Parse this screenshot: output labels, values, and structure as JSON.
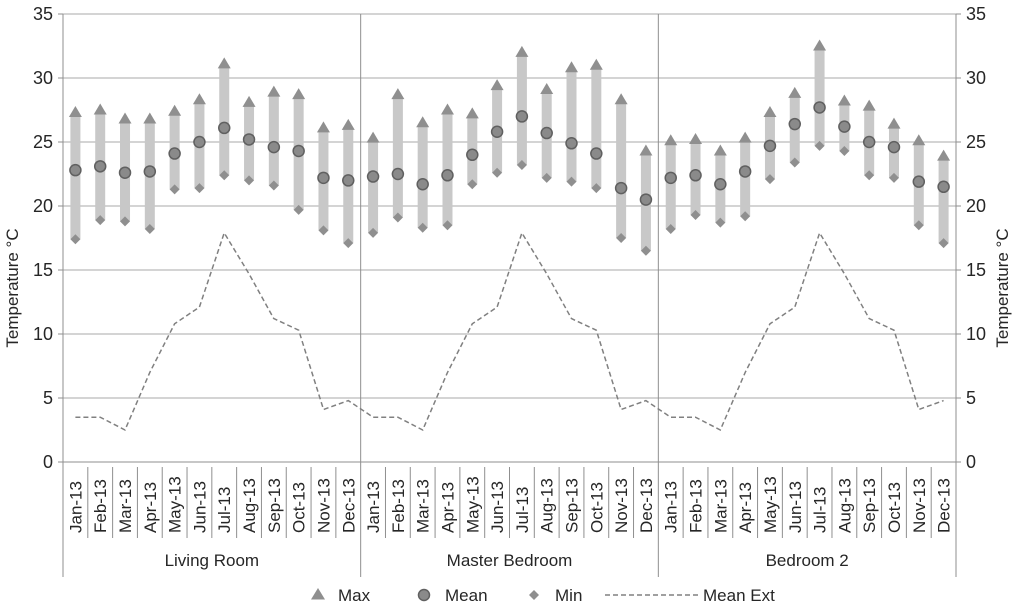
{
  "chart_data": {
    "type": "bar",
    "subtype": "floating min-max range bars with mean markers plus dashed external-temperature line, three room panels",
    "title": "",
    "ylabel_left": "Temperature °C",
    "ylabel_right": "Temperature °C",
    "ylim": [
      0,
      35
    ],
    "ytick_interval": 5,
    "ytick_labels": [
      "35",
      "30",
      "25",
      "20",
      "15",
      "10",
      "5",
      "0"
    ],
    "grid": true,
    "legend_position": "bottom",
    "categories": [
      "Jan-13",
      "Feb-13",
      "Mar-13",
      "Apr-13",
      "May-13",
      "Jun-13",
      "Jul-13",
      "Aug-13",
      "Sep-13",
      "Oct-13",
      "Nov-13",
      "Dec-13"
    ],
    "panels": [
      {
        "name": "Living Room",
        "max": [
          27.3,
          27.5,
          26.8,
          26.8,
          27.4,
          28.3,
          31.1,
          28.1,
          28.9,
          28.7,
          26.1,
          26.3
        ],
        "mean": [
          22.8,
          23.1,
          22.6,
          22.7,
          24.1,
          25.0,
          26.1,
          25.2,
          24.6,
          24.3,
          22.2,
          22.0
        ],
        "min": [
          17.4,
          18.9,
          18.8,
          18.2,
          21.3,
          21.4,
          22.4,
          22.0,
          21.6,
          19.7,
          18.1,
          17.1
        ]
      },
      {
        "name": "Master Bedroom",
        "max": [
          25.3,
          28.7,
          26.5,
          27.5,
          27.2,
          29.4,
          32.0,
          29.1,
          30.8,
          31.0,
          28.3,
          24.3
        ],
        "mean": [
          22.3,
          22.5,
          21.7,
          22.4,
          24.0,
          25.8,
          27.0,
          25.7,
          24.9,
          24.1,
          21.4,
          20.5
        ],
        "min": [
          17.9,
          19.1,
          18.3,
          18.5,
          21.7,
          22.6,
          23.2,
          22.2,
          21.9,
          21.4,
          17.5,
          16.5
        ]
      },
      {
        "name": "Bedroom 2",
        "max": [
          25.1,
          25.2,
          24.3,
          25.3,
          27.3,
          28.8,
          32.5,
          28.2,
          27.8,
          26.4,
          25.1,
          23.9
        ],
        "mean": [
          22.2,
          22.4,
          21.7,
          22.7,
          24.7,
          26.4,
          27.7,
          26.2,
          25.0,
          24.6,
          21.9,
          21.5
        ],
        "min": [
          18.2,
          19.3,
          18.7,
          19.2,
          22.1,
          23.4,
          24.7,
          24.3,
          22.4,
          22.2,
          18.5,
          17.1
        ]
      }
    ],
    "mean_ext": {
      "repeats_per_panel": true,
      "values": [
        3.5,
        3.5,
        2.5,
        7.0,
        10.8,
        12.1,
        17.9,
        14.7,
        11.2,
        10.3,
        4.1,
        4.8
      ]
    },
    "legend": [
      {
        "label": "Max",
        "marker": "triangle"
      },
      {
        "label": "Mean",
        "marker": "circle"
      },
      {
        "label": "Min",
        "marker": "diamond"
      },
      {
        "label": "Mean Ext",
        "marker": "dashed-line"
      }
    ],
    "colors": {
      "bar": "#c8c8c8",
      "marker": "#8f8f8f",
      "marker_edge": "#606060",
      "mean_fill": "#8a8a8a",
      "grid": "#a8a8a8",
      "axis": "#8f8f8f",
      "dashed_line": "#808080",
      "text": "#262626"
    }
  }
}
